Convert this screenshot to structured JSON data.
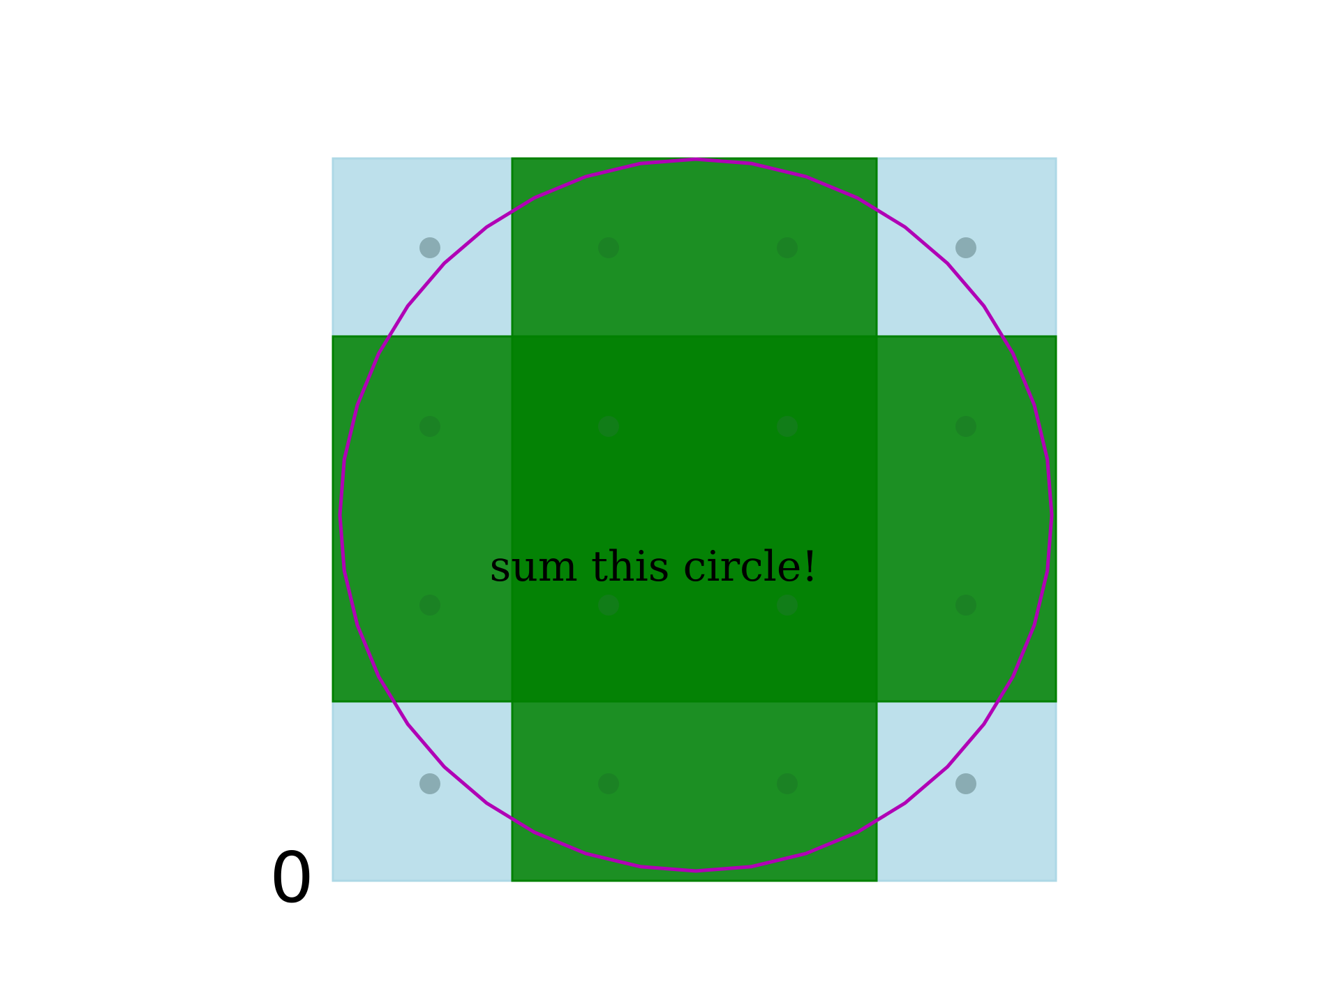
{
  "diagram": {
    "grid": {
      "rows": 4,
      "cols": 4
    },
    "cells": [
      [
        "outside",
        "inside",
        "inside",
        "outside"
      ],
      [
        "inside",
        "inside",
        "inside",
        "inside"
      ],
      [
        "inside",
        "inside",
        "inside",
        "inside"
      ],
      [
        "outside",
        "inside",
        "inside",
        "outside"
      ]
    ],
    "colors": {
      "outside_fill": "#add8e6",
      "inside_fill": "#008000",
      "inside_stroke": "#008000",
      "circle": "#b000b5",
      "dot_outside": "#8aacb3",
      "dot_inside": "#1a7a25"
    },
    "circle_shape": "polygon approximation of a circle inscribed in the grid",
    "annotation": "sum this circle!",
    "corner_label": "0"
  }
}
